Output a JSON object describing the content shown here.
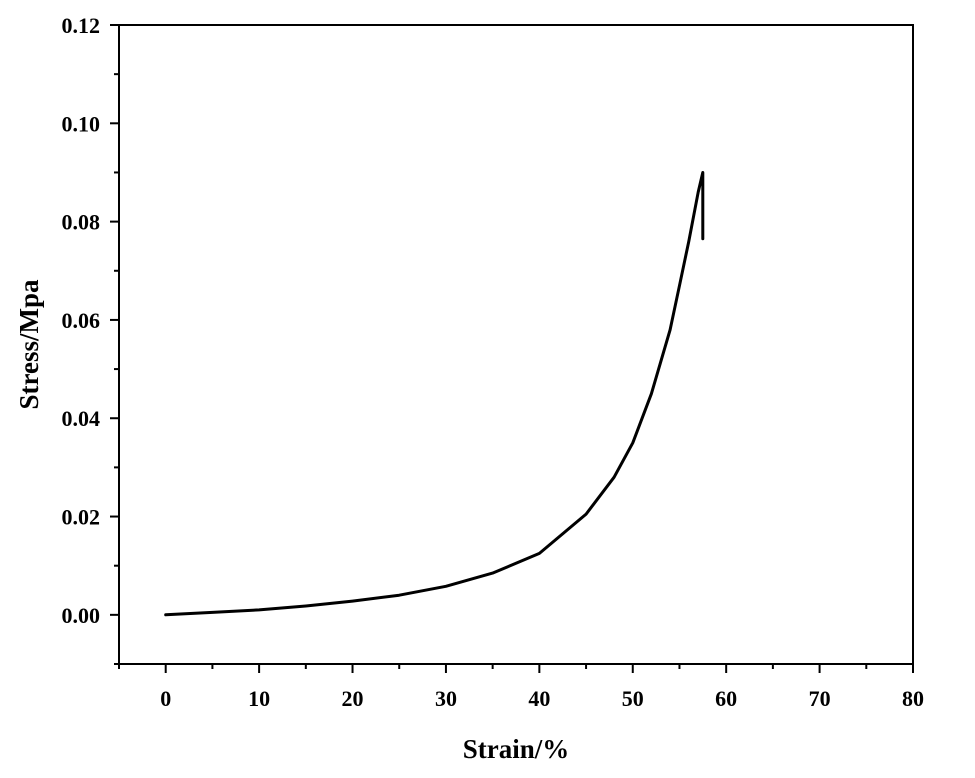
{
  "chart_data": {
    "type": "line",
    "xlabel": "Strain/%",
    "ylabel": "Stress/Mpa",
    "xlim": [
      -5,
      80
    ],
    "ylim": [
      -0.01,
      0.12
    ],
    "xticks": [
      0,
      10,
      20,
      30,
      40,
      50,
      60,
      70,
      80
    ],
    "yticks": [
      0.0,
      0.02,
      0.04,
      0.06,
      0.08,
      0.1,
      0.12
    ],
    "xtick_labels": [
      "0",
      "10",
      "20",
      "30",
      "40",
      "50",
      "60",
      "70",
      "80"
    ],
    "ytick_labels": [
      "0.00",
      "0.02",
      "0.04",
      "0.06",
      "0.08",
      "0.10",
      "0.12"
    ],
    "grid": false,
    "line_color": "#000000",
    "series": [
      {
        "x": [
          0,
          5,
          10,
          15,
          20,
          25,
          30,
          35,
          40,
          45,
          48,
          50,
          52,
          54,
          55,
          56,
          57,
          57.5,
          57.5
        ],
        "y": [
          0.0,
          0.0005,
          0.001,
          0.0018,
          0.0028,
          0.004,
          0.0058,
          0.0085,
          0.0125,
          0.0205,
          0.028,
          0.035,
          0.045,
          0.058,
          0.067,
          0.076,
          0.086,
          0.09,
          0.0765
        ]
      }
    ]
  }
}
